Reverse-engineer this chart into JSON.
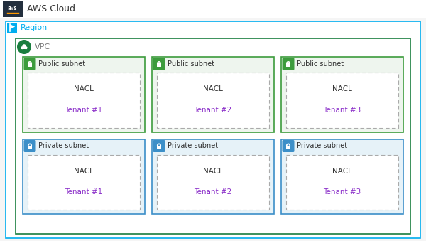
{
  "title": "AWS Cloud",
  "region_label": "Region",
  "vpc_label": "VPC",
  "public_label": "Public subnet",
  "private_label": "Private subnet",
  "nacl_label": "NACL",
  "tenants": [
    "Tenant #1",
    "Tenant #2",
    "Tenant #3"
  ],
  "bg_color": "#f5f5f5",
  "aws_logo_bg": "#232f3e",
  "header_text_color": "#333333",
  "region_border_color": "#00adef",
  "region_icon_bg": "#00adef",
  "vpc_border_color": "#1a7e3f",
  "vpc_icon_bg": "#1a7e3f",
  "public_subnet_bg": "#eef5ee",
  "public_subnet_border": "#3d9c3d",
  "private_subnet_bg": "#e6f2f8",
  "private_subnet_border": "#3c8fc8",
  "public_icon_bg": "#3d9c3d",
  "private_icon_bg": "#3c8fc8",
  "nacl_border_color": "#aaaaaa",
  "nacl_bg": "#ffffff",
  "tenant_color": "#8b2fc9",
  "nacl_text_color": "#333333",
  "region_text_color": "#00adef",
  "vpc_text_color": "#777777",
  "header_bg": "#ffffff"
}
